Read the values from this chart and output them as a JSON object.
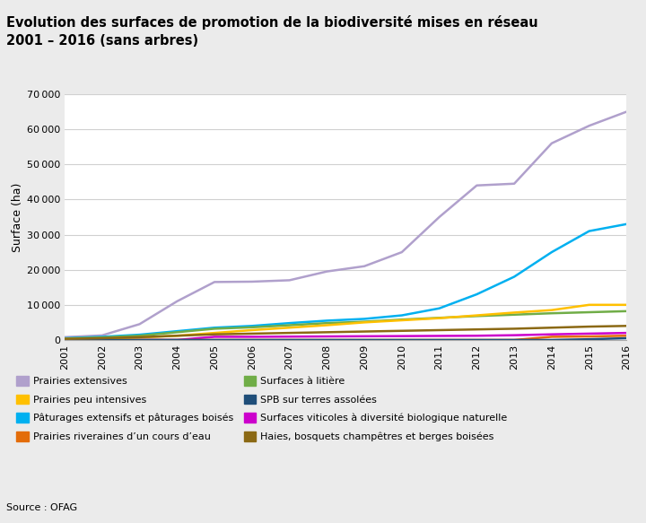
{
  "title_line1": "Evolution des surfaces de promotion de la biodiversité mises en réseau",
  "title_line2": "2001 – 2016 (sans arbres)",
  "ylabel": "Surface (ha)",
  "source": "Source : OFAG",
  "years": [
    2001,
    2002,
    2003,
    2004,
    2005,
    2006,
    2007,
    2008,
    2009,
    2010,
    2011,
    2012,
    2013,
    2014,
    2015,
    2016
  ],
  "series": [
    {
      "label": "Prairies extensives",
      "color": "#b0a0cc",
      "data": [
        800,
        1300,
        4500,
        11000,
        16500,
        16600,
        17000,
        19500,
        21000,
        25000,
        35000,
        44000,
        44500,
        56000,
        61000,
        65000
      ]
    },
    {
      "label": "Pâturages extensifs et pâturages boisés",
      "color": "#00b0f0",
      "data": [
        500,
        900,
        1500,
        2500,
        3500,
        4000,
        4800,
        5500,
        6000,
        7000,
        9000,
        13000,
        18000,
        25000,
        31000,
        33000
      ]
    },
    {
      "label": "Surfaces à litière",
      "color": "#70ad47",
      "data": [
        400,
        700,
        1200,
        2200,
        3200,
        3600,
        4200,
        4800,
        5200,
        5800,
        6300,
        6800,
        7200,
        7600,
        7900,
        8200
      ]
    },
    {
      "label": "Surfaces viticoles à diversité biologique naturelle",
      "color": "#cc00cc",
      "data": [
        0,
        0,
        0,
        0,
        900,
        900,
        950,
        1000,
        1050,
        1100,
        1150,
        1200,
        1350,
        1600,
        1800,
        2000
      ]
    },
    {
      "label": "Prairies peu intensives",
      "color": "#ffc000",
      "data": [
        200,
        400,
        700,
        1200,
        2000,
        2800,
        3500,
        4200,
        5000,
        5600,
        6200,
        7000,
        7800,
        8500,
        10000,
        10000
      ]
    },
    {
      "label": "Prairies riveraines d’un cours d’eau",
      "color": "#e36c09",
      "data": [
        0,
        0,
        0,
        0,
        0,
        0,
        0,
        0,
        0,
        0,
        0,
        0,
        0,
        900,
        1000,
        1200
      ]
    },
    {
      "label": "SPB sur terres assolées",
      "color": "#1f4e79",
      "data": [
        0,
        0,
        0,
        0,
        0,
        0,
        0,
        0,
        0,
        0,
        0,
        0,
        0,
        0,
        200,
        500
      ]
    },
    {
      "label": "Haies, bosquets champêtres et berges boisées",
      "color": "#8b6914",
      "data": [
        300,
        500,
        800,
        1200,
        1600,
        1800,
        2000,
        2200,
        2400,
        2600,
        2800,
        3000,
        3200,
        3500,
        3800,
        4000
      ]
    }
  ],
  "ylim": [
    0,
    70000
  ],
  "yticks": [
    0,
    10000,
    20000,
    30000,
    40000,
    50000,
    60000,
    70000
  ],
  "background_color": "#ebebeb",
  "plot_bg_color": "#ffffff",
  "grid_color": "#d0d0d0",
  "title_fontsize": 10.5,
  "label_fontsize": 9,
  "tick_fontsize": 8,
  "legend_fontsize": 8,
  "source_fontsize": 8,
  "legend_col1_order": [
    0,
    1,
    2,
    3
  ],
  "legend_col2_order": [
    4,
    5,
    6,
    7
  ]
}
